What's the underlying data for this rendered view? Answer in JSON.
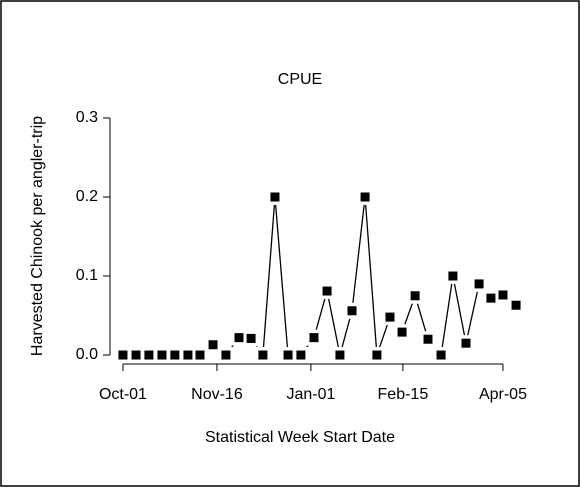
{
  "chart_data": {
    "type": "line",
    "title": "CPUE",
    "x_label": "Statistical Week Start Date",
    "y_label": "Harvested Chinook per angler-trip",
    "x": [
      0,
      6.4,
      12.7,
      19.1,
      25.4,
      31.8,
      37.7,
      44.1,
      50.4,
      56.8,
      62.7,
      68.5,
      74.4,
      80.8,
      87.1,
      93.5,
      99.9,
      106.2,
      112.1,
      118.5,
      124.3,
      130.7,
      136.6,
      143,
      149.3,
      155.7,
      161.5,
      167.9,
      174.3,
      180.1,
      186,
      192.4
    ],
    "values": [
      0,
      0,
      0,
      0,
      0,
      0,
      0,
      0.013,
      0,
      0.022,
      0.021,
      0,
      0.2,
      0,
      0,
      0.022,
      0.081,
      0,
      0.056,
      0.2,
      0,
      0.048,
      0.029,
      0.075,
      0.02,
      0,
      0.1,
      0.015,
      0.09,
      0.072,
      0.076,
      0.063
    ],
    "color": "#000000",
    "marker": "square",
    "xlim": [
      -6,
      198
    ],
    "xticks": [
      {
        "value": 0,
        "label": "Oct-01"
      },
      {
        "value": 46,
        "label": "Nov-16"
      },
      {
        "value": 92,
        "label": "Jan-01"
      },
      {
        "value": 137,
        "label": "Feb-15"
      },
      {
        "value": 186,
        "label": "Apr-05"
      }
    ],
    "ylim": [
      -0.012,
      0.312
    ],
    "yticks": [
      {
        "value": 0,
        "label": "0.0"
      },
      0.1,
      0.2,
      0.3
    ]
  }
}
